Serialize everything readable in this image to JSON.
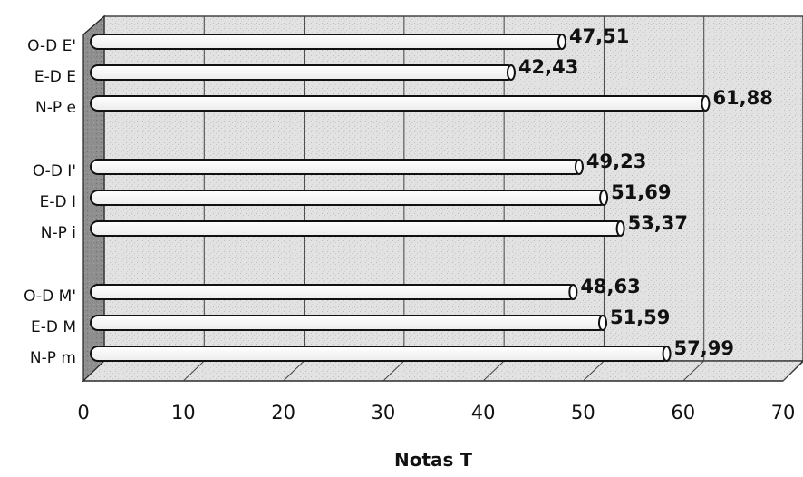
{
  "chart_data": {
    "type": "bar",
    "orientation": "horizontal",
    "style": "3d-cylinder",
    "title": "",
    "xlabel": "Notas T",
    "ylabel": "",
    "xlim": [
      0,
      70
    ],
    "x_ticks": [
      "0",
      "10",
      "20",
      "30",
      "40",
      "50",
      "60",
      "70"
    ],
    "grid": true,
    "legend": "none",
    "categories": [
      "O-D E'",
      "E-D E",
      "N-P e",
      "O-D I'",
      "E-D I",
      "N-P i",
      "O-D M'",
      "E-D M",
      "N-P m"
    ],
    "groups": [
      [
        "O-D E'",
        "E-D E",
        "N-P e"
      ],
      [
        "O-D I'",
        "E-D I",
        "N-P i"
      ],
      [
        "O-D M'",
        "E-D M",
        "N-P m"
      ]
    ],
    "values": [
      47.51,
      42.43,
      61.88,
      49.23,
      51.69,
      53.37,
      48.63,
      51.59,
      57.99
    ],
    "value_labels": [
      "47,51",
      "42,43",
      "61,88",
      "49,23",
      "51,69",
      "53,37",
      "48,63",
      "51,59",
      "57,99"
    ],
    "colors": {
      "bar_fill": "#ffffff",
      "bar_stroke": "#111111",
      "plot_background": "#dcdcdc",
      "side_wall": "#8c8c8c",
      "grid": "#444444"
    }
  }
}
